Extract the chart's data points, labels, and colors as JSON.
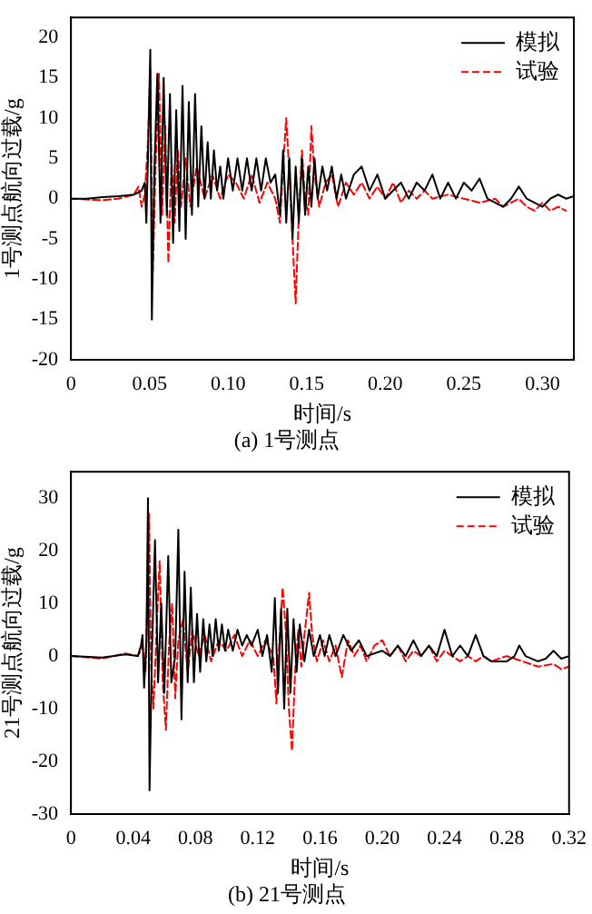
{
  "chart_data": [
    {
      "type": "line",
      "title": "(a) 1号测点",
      "xlabel": "时间/s",
      "ylabel": "1号测点航向过载/g",
      "xlim": [
        0,
        0.32
      ],
      "xticks": [
        0,
        0.05,
        {
          "value": 0.1,
          "label": "0.10"
        },
        0.15,
        {
          "value": 0.2,
          "label": "0.20"
        },
        0.25,
        {
          "value": 0.3,
          "label": "0.30"
        }
      ],
      "ylim": [
        -20,
        22.5
      ],
      "yticks": [
        -20,
        -15,
        -10,
        -5,
        0,
        5,
        10,
        15,
        20
      ],
      "grid": false,
      "legend": "top right",
      "marker": "none",
      "series": [
        {
          "name": "模拟",
          "color": "#000000",
          "line_style": "solid",
          "x": [
            0,
            0.01,
            0.02,
            0.03,
            0.04,
            0.045,
            0.047,
            0.048,
            0.049,
            0.0505,
            0.0515,
            0.053,
            0.055,
            0.057,
            0.059,
            0.061,
            0.063,
            0.065,
            0.067,
            0.069,
            0.071,
            0.073,
            0.075,
            0.077,
            0.079,
            0.081,
            0.083,
            0.085,
            0.087,
            0.089,
            0.091,
            0.093,
            0.095,
            0.097,
            0.1,
            0.103,
            0.106,
            0.109,
            0.112,
            0.115,
            0.118,
            0.121,
            0.124,
            0.127,
            0.13,
            0.133,
            0.135,
            0.137,
            0.139,
            0.141,
            0.143,
            0.145,
            0.147,
            0.149,
            0.151,
            0.153,
            0.155,
            0.157,
            0.16,
            0.163,
            0.166,
            0.169,
            0.172,
            0.175,
            0.18,
            0.185,
            0.19,
            0.195,
            0.2,
            0.205,
            0.21,
            0.215,
            0.22,
            0.225,
            0.23,
            0.235,
            0.24,
            0.245,
            0.25,
            0.255,
            0.26,
            0.265,
            0.27,
            0.275,
            0.28,
            0.285,
            0.29,
            0.295,
            0.3,
            0.305,
            0.31,
            0.315,
            0.32
          ],
          "values": [
            0,
            0,
            0.2,
            0.3,
            0.5,
            1,
            2,
            -3,
            5,
            18.5,
            -15,
            3,
            15.5,
            -3,
            15,
            -2,
            13,
            -5.5,
            11,
            -4,
            14,
            -5,
            12,
            -2,
            13,
            -1,
            9,
            0,
            7,
            0,
            6,
            1,
            4,
            0,
            5,
            1,
            5,
            1,
            5,
            1,
            5,
            1,
            5,
            2,
            3,
            -2,
            6,
            -3,
            5,
            -5,
            4,
            -3,
            5,
            -2,
            4,
            -1,
            5,
            0,
            4,
            1,
            4,
            0,
            3,
            0,
            3,
            4,
            1,
            3,
            0,
            1,
            2,
            0,
            2,
            1,
            3,
            0,
            2,
            0,
            2,
            1,
            2.5,
            0,
            -0.5,
            -1,
            0,
            1.5,
            0,
            -0.5,
            -1,
            0,
            0.5,
            0,
            0.3
          ]
        },
        {
          "name": "试验",
          "color": "#ff0000",
          "line_style": "dashed",
          "x": [
            0,
            0.02,
            0.03,
            0.04,
            0.043,
            0.045,
            0.047,
            0.049,
            0.0505,
            0.052,
            0.054,
            0.056,
            0.058,
            0.06,
            0.062,
            0.064,
            0.066,
            0.068,
            0.07,
            0.073,
            0.076,
            0.08,
            0.085,
            0.09,
            0.095,
            0.1,
            0.105,
            0.11,
            0.115,
            0.12,
            0.125,
            0.13,
            0.133,
            0.135,
            0.137,
            0.139,
            0.141,
            0.143,
            0.145,
            0.147,
            0.149,
            0.151,
            0.153,
            0.155,
            0.158,
            0.162,
            0.166,
            0.17,
            0.175,
            0.18,
            0.185,
            0.19,
            0.195,
            0.2,
            0.205,
            0.21,
            0.215,
            0.22,
            0.225,
            0.23,
            0.24,
            0.25,
            0.26,
            0.27,
            0.275,
            0.28,
            0.285,
            0.29,
            0.295,
            0.3,
            0.305,
            0.31,
            0.315
          ],
          "values": [
            0,
            -0.2,
            0,
            0.5,
            1.5,
            -1,
            0.5,
            7,
            16,
            -10,
            5,
            15.5,
            -2,
            9,
            -8,
            5,
            -3,
            6,
            -1,
            5,
            -1,
            4,
            0,
            3,
            0,
            3,
            2,
            0,
            3,
            -0.5,
            2,
            0,
            -3,
            4,
            10,
            3,
            -5,
            -13,
            -2,
            6,
            0,
            -2,
            9,
            3,
            -1,
            2,
            3,
            -1,
            2,
            0.5,
            2,
            0,
            1.5,
            0,
            2,
            -0.5,
            1,
            0,
            1,
            0,
            0.5,
            0,
            -0.5,
            0,
            -1,
            -0.5,
            0,
            -1,
            -1.5,
            -0.5,
            -1.5,
            -1,
            -1.5
          ]
        }
      ]
    },
    {
      "type": "line",
      "title": "(b) 21号测点",
      "xlabel": "时间/s",
      "ylabel": "21号测点航向过载/g",
      "xlim": [
        0,
        0.32
      ],
      "xticks": [
        0,
        0.04,
        0.08,
        0.12,
        0.16,
        {
          "value": 0.2,
          "label": "0.20"
        },
        0.24,
        0.28,
        0.32
      ],
      "ylim": [
        -30,
        35
      ],
      "yticks": [
        -30,
        -20,
        -10,
        0,
        10,
        20,
        30
      ],
      "grid": false,
      "legend": "top right",
      "marker": "none",
      "series": [
        {
          "name": "模拟",
          "color": "#000000",
          "line_style": "solid",
          "x": [
            0,
            0.02,
            0.035,
            0.043,
            0.045,
            0.046,
            0.047,
            0.0485,
            0.0495,
            0.0505,
            0.052,
            0.054,
            0.056,
            0.058,
            0.06,
            0.0625,
            0.0645,
            0.067,
            0.069,
            0.071,
            0.073,
            0.075,
            0.077,
            0.079,
            0.081,
            0.083,
            0.085,
            0.087,
            0.089,
            0.091,
            0.093,
            0.095,
            0.097,
            0.099,
            0.101,
            0.104,
            0.107,
            0.11,
            0.113,
            0.116,
            0.12,
            0.123,
            0.126,
            0.129,
            0.131,
            0.133,
            0.135,
            0.137,
            0.139,
            0.141,
            0.143,
            0.145,
            0.147,
            0.15,
            0.153,
            0.156,
            0.16,
            0.163,
            0.166,
            0.17,
            0.175,
            0.18,
            0.185,
            0.19,
            0.2,
            0.205,
            0.21,
            0.215,
            0.22,
            0.225,
            0.23,
            0.235,
            0.24,
            0.245,
            0.25,
            0.255,
            0.26,
            0.265,
            0.27,
            0.28,
            0.285,
            0.288,
            0.292,
            0.3,
            0.305,
            0.31,
            0.315,
            0.32
          ],
          "values": [
            0,
            -0.3,
            0.3,
            0,
            2,
            4,
            -6,
            3,
            30,
            -25.5,
            0,
            22,
            -5,
            10,
            -7,
            19,
            -5,
            0,
            24,
            -12,
            16,
            -5,
            13,
            -5,
            8,
            -3,
            7,
            -1,
            6,
            0,
            7,
            1,
            6,
            1,
            5,
            1,
            5,
            2,
            4,
            2,
            5,
            0,
            4,
            -3,
            11,
            -7,
            9,
            -10,
            9,
            -7,
            7,
            -3,
            6,
            -1,
            5,
            0,
            4,
            0,
            4,
            0,
            4,
            1,
            3,
            0,
            1,
            0,
            2,
            0,
            3,
            0,
            2,
            0,
            5,
            0,
            2,
            0,
            4,
            0,
            -1,
            -1,
            0,
            2,
            0,
            -1,
            -0.5,
            1,
            -0.5,
            0
          ]
        },
        {
          "name": "试验",
          "color": "#ff0000",
          "line_style": "dashed",
          "x": [
            0,
            0.02,
            0.035,
            0.043,
            0.046,
            0.048,
            0.0502,
            0.0515,
            0.053,
            0.055,
            0.057,
            0.059,
            0.061,
            0.063,
            0.065,
            0.067,
            0.069,
            0.072,
            0.075,
            0.078,
            0.082,
            0.086,
            0.09,
            0.095,
            0.1,
            0.105,
            0.11,
            0.115,
            0.12,
            0.125,
            0.13,
            0.132,
            0.134,
            0.136,
            0.138,
            0.14,
            0.142,
            0.144,
            0.146,
            0.148,
            0.15,
            0.153,
            0.155,
            0.158,
            0.162,
            0.166,
            0.17,
            0.174,
            0.178,
            0.182,
            0.186,
            0.19,
            0.195,
            0.2,
            0.205,
            0.21,
            0.215,
            0.22,
            0.225,
            0.23,
            0.235,
            0.24,
            0.25,
            0.255,
            0.26,
            0.265,
            0.27,
            0.28,
            0.29,
            0.295,
            0.3,
            0.31,
            0.315,
            0.32
          ],
          "values": [
            0,
            -0.5,
            0.5,
            0,
            2,
            -3,
            27,
            -2,
            -10,
            5,
            18,
            -5,
            -14,
            2,
            10,
            -8,
            3,
            7,
            -3,
            5,
            0,
            4,
            -1,
            3,
            1,
            4,
            0,
            3,
            0,
            3,
            0,
            -9,
            3,
            13,
            5,
            -10,
            -18,
            -3,
            5,
            -2,
            4,
            12,
            4,
            -1,
            3,
            -1,
            2,
            -4,
            3,
            0,
            2,
            -1,
            2,
            3,
            0,
            2,
            -1,
            1,
            0,
            2,
            -1,
            1,
            -1,
            0,
            -1,
            0,
            -1,
            0,
            -1,
            -1.5,
            -2,
            -1.5,
            -2.5,
            -2
          ]
        }
      ]
    }
  ]
}
